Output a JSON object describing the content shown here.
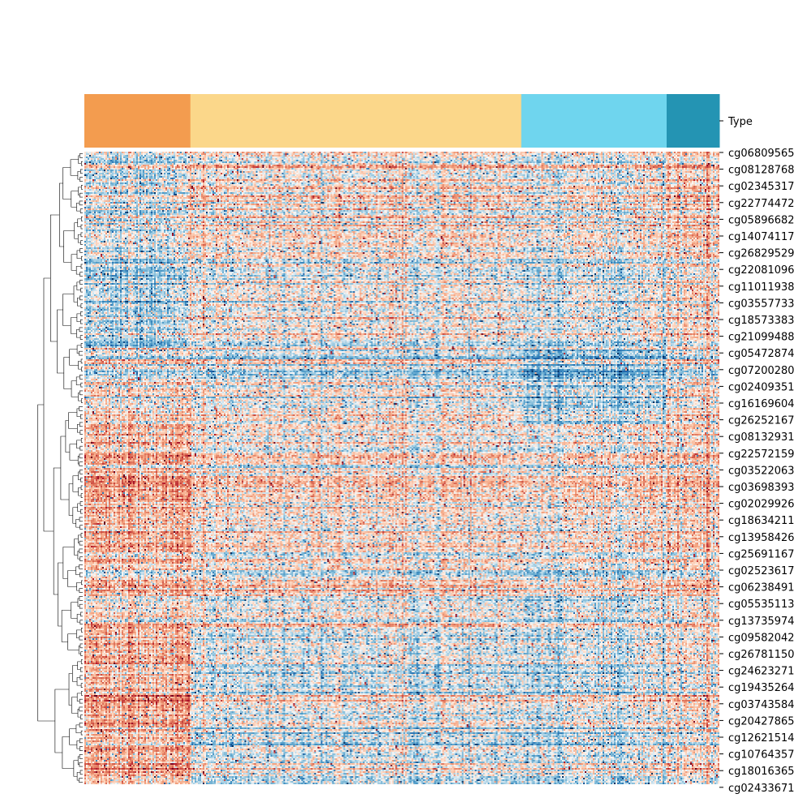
{
  "chart_data": {
    "type": "heatmap",
    "title": "",
    "annotation_row_label": "Type",
    "colormap": "RdBu_r",
    "col_groups": [
      {
        "share": 0.167,
        "color": "#f39c4f"
      },
      {
        "share": 0.521,
        "color": "#fbd78a"
      },
      {
        "share": 0.229,
        "color": "#6fd5ee"
      },
      {
        "share": 0.083,
        "color": "#2494b3"
      }
    ],
    "row_labels": [
      "cg06809565",
      "cg08128768",
      "cg02345317",
      "cg22774472",
      "cg05896682",
      "cg14074117",
      "cg26829529",
      "cg22081096",
      "cg11011938",
      "cg03557733",
      "cg18573383",
      "cg21099488",
      "cg05472874",
      "cg07200280",
      "cg02409351",
      "cg16169604",
      "cg26252167",
      "cg08132931",
      "cg22572159",
      "cg03522063",
      "cg03698393",
      "cg02029926",
      "cg18634211",
      "cg13958426",
      "cg25691167",
      "cg02523617",
      "cg06238491",
      "cg05535113",
      "cg13735974",
      "cg09582042",
      "cg26781150",
      "cg24623271",
      "cg19435264",
      "cg03743584",
      "cg20427865",
      "cg12621514",
      "cg10764357",
      "cg18016365",
      "cg02433671"
    ],
    "n_rows": 390,
    "n_cols": 392,
    "value_range": [
      -1,
      1
    ],
    "row_clusters": [
      {
        "share": 0.18,
        "bias": [
          -0.15,
          0.15,
          0.05,
          0.25
        ]
      },
      {
        "share": 0.13,
        "bias": [
          -0.25,
          0.1,
          0.0,
          0.2
        ]
      },
      {
        "share": 0.12,
        "bias": [
          0.15,
          0.05,
          -0.3,
          0.1
        ]
      },
      {
        "share": 0.22,
        "bias": [
          0.45,
          0.12,
          0.1,
          0.2
        ]
      },
      {
        "share": 0.1,
        "bias": [
          0.25,
          0.1,
          -0.05,
          0.15
        ]
      },
      {
        "share": 0.25,
        "bias": [
          0.55,
          -0.05,
          -0.08,
          0.1
        ]
      }
    ]
  }
}
